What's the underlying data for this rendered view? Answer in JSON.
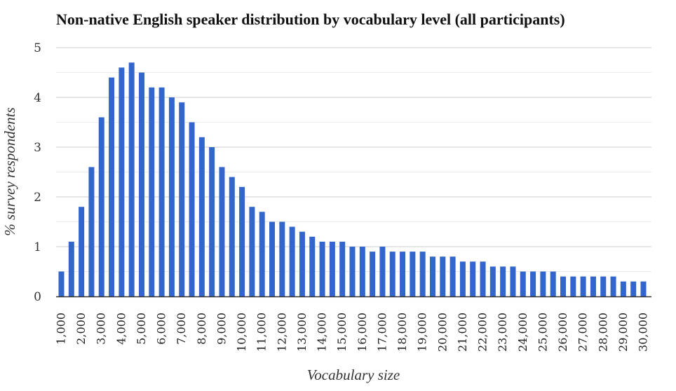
{
  "chart_data": {
    "type": "bar",
    "title": "Non-native English speaker distribution by vocabulary level (all participants)",
    "xlabel": "Vocabulary size",
    "ylabel": "% survey respondents",
    "ylim": [
      0,
      5
    ],
    "yticks": [
      "0",
      "1",
      "2",
      "3",
      "4",
      "5"
    ],
    "grid": true,
    "bar_color": "#3366cc",
    "categories": [
      "1,000",
      "1,500",
      "2,000",
      "2,500",
      "3,000",
      "3,500",
      "4,000",
      "4,500",
      "5,000",
      "5,500",
      "6,000",
      "6,500",
      "7,000",
      "7,500",
      "8,000",
      "8,500",
      "9,000",
      "9,500",
      "10,000",
      "10,500",
      "11,000",
      "11,500",
      "12,000",
      "12,500",
      "13,000",
      "13,500",
      "14,000",
      "14,500",
      "15,000",
      "15,500",
      "16,000",
      "16,500",
      "17,000",
      "17,500",
      "18,000",
      "18,500",
      "19,000",
      "19,500",
      "20,000",
      "20,500",
      "21,000",
      "21,500",
      "22,000",
      "22,500",
      "23,000",
      "23,500",
      "24,000",
      "24,500",
      "25,000",
      "25,500",
      "26,000",
      "26,500",
      "27,000",
      "27,500",
      "28,000",
      "28,500",
      "29,000",
      "29,500",
      "30,000"
    ],
    "values": [
      0.5,
      1.1,
      1.8,
      2.6,
      3.6,
      4.4,
      4.6,
      4.7,
      4.5,
      4.2,
      4.2,
      4.0,
      3.9,
      3.5,
      3.2,
      3.0,
      2.6,
      2.4,
      2.2,
      1.8,
      1.7,
      1.5,
      1.5,
      1.4,
      1.3,
      1.2,
      1.1,
      1.1,
      1.1,
      1.0,
      1.0,
      0.9,
      1.0,
      0.9,
      0.9,
      0.9,
      0.9,
      0.8,
      0.8,
      0.8,
      0.7,
      0.7,
      0.7,
      0.6,
      0.6,
      0.6,
      0.5,
      0.5,
      0.5,
      0.5,
      0.4,
      0.4,
      0.4,
      0.4,
      0.4,
      0.4,
      0.3,
      0.3,
      0.3
    ],
    "xtick_labels": [
      "1,000",
      "2,000",
      "3,000",
      "4,000",
      "5,000",
      "6,000",
      "7,000",
      "8,000",
      "9,000",
      "10,000",
      "11,000",
      "12,000",
      "13,000",
      "14,000",
      "15,000",
      "16,000",
      "17,000",
      "18,000",
      "19,000",
      "20,000",
      "21,000",
      "22,000",
      "23,000",
      "24,000",
      "25,000",
      "26,000",
      "27,000",
      "28,000",
      "29,000",
      "30,000"
    ]
  }
}
